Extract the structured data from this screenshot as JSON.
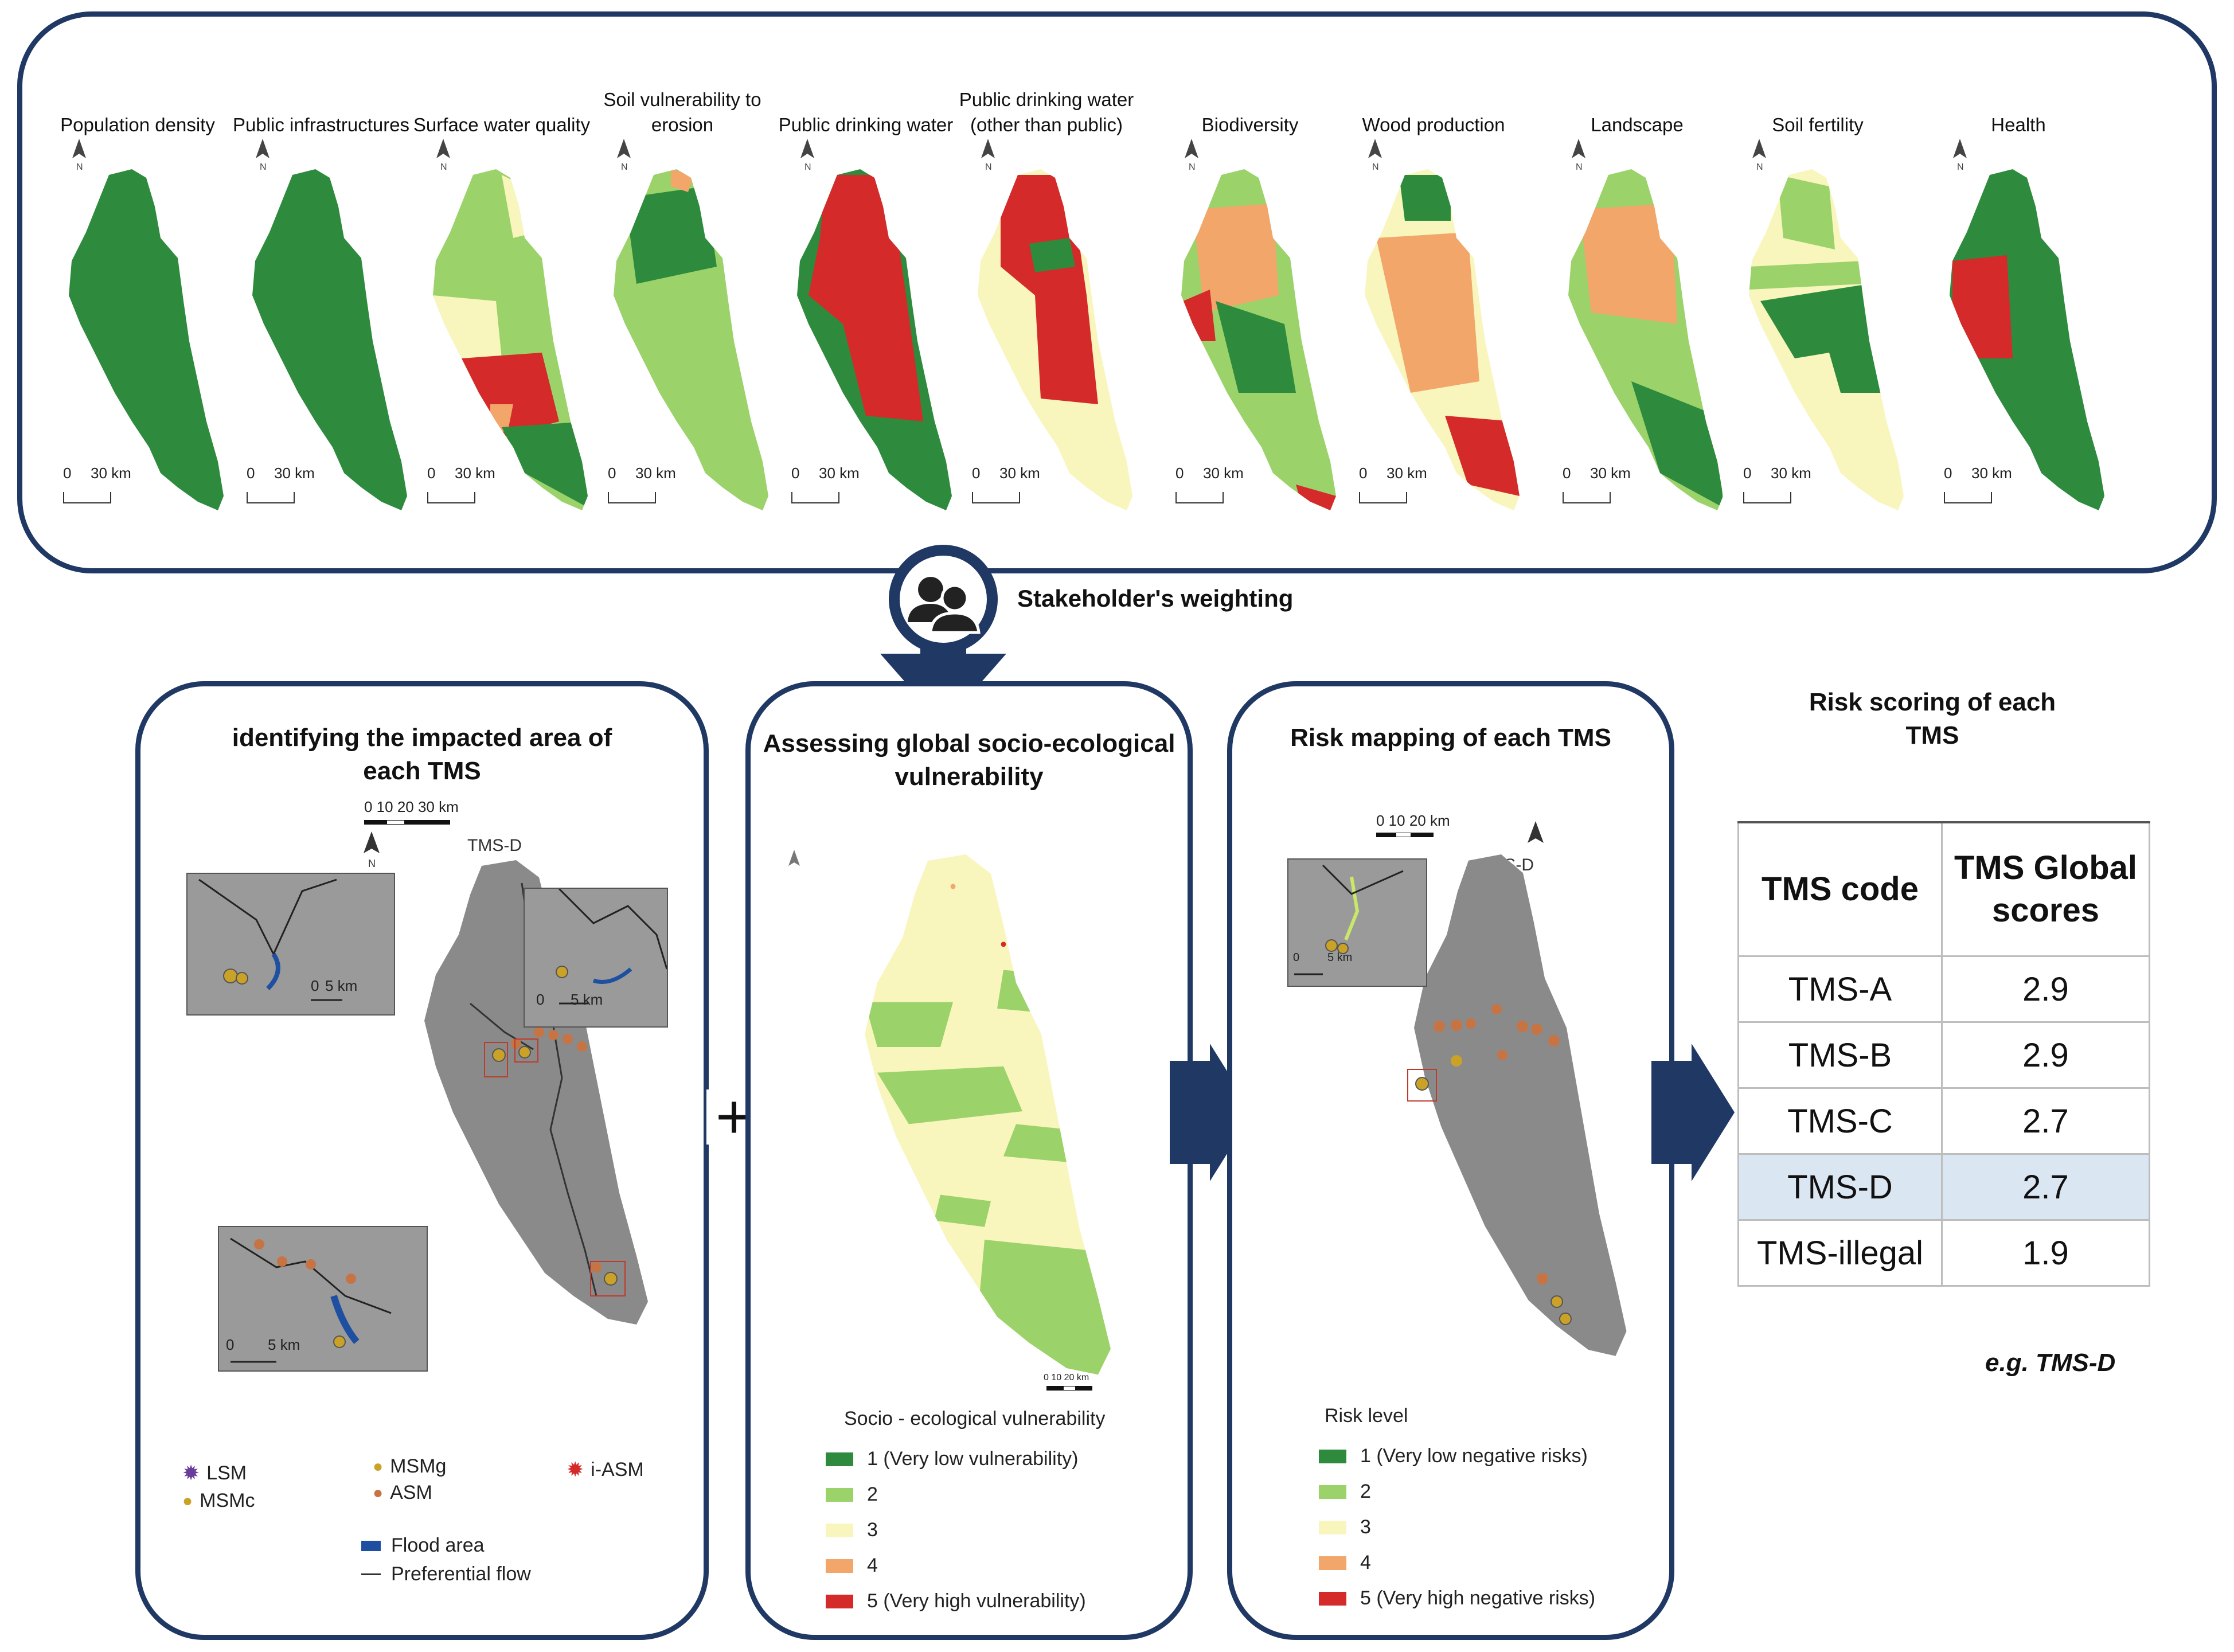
{
  "top_maps": [
    {
      "label": "Population density",
      "scale": "30 km"
    },
    {
      "label": "Public infrastructures",
      "scale": "30 km"
    },
    {
      "label": "Surface water quality",
      "scale": "30 km"
    },
    {
      "label": "Soil vulnerability to erosion",
      "scale": "30 km"
    },
    {
      "label": "Public drinking water",
      "scale": "30 km"
    },
    {
      "label": "Public drinking water (other than public)",
      "scale": "30 km"
    },
    {
      "label": "Biodiversity",
      "scale": "30 km"
    },
    {
      "label": "Wood production",
      "scale": "30 km"
    },
    {
      "label": "Landscape",
      "scale": "30 km"
    },
    {
      "label": "Soil fertility",
      "scale": "30 km"
    },
    {
      "label": "Health",
      "scale": "30 km"
    }
  ],
  "scale_zero": "0",
  "north": "N",
  "stakeholder_label": "Stakeholder's weighting",
  "panel1": {
    "title": "identifying the impacted area of each TMS",
    "scale": "0  10  20  30 km",
    "tms_label": "TMS-D",
    "inset_scale": "5 km",
    "inset_zero": "0",
    "legend": {
      "lsm": "LSM",
      "msmc": "MSMc",
      "msmg": "MSMg",
      "asm": "ASM",
      "iasm": "i-ASM",
      "flood": "Flood area",
      "flow": "Preferential flow"
    }
  },
  "plus_sign": "+",
  "panel2": {
    "title": "Assessing global socio-ecological vulnerability",
    "map_scale": "0  10  20 km",
    "legend_title": "Socio - ecological vulnerability",
    "legend": [
      "1 (Very low vulnerability)",
      "2",
      "3",
      "4",
      "5 (Very high vulnerability)"
    ]
  },
  "panel3": {
    "title": "Risk mapping of each TMS",
    "scale": "0  10  20 km",
    "tms_label": "TMS-D",
    "inset_scale": "5 km",
    "inset_zero": "0",
    "legend_title": "Risk level",
    "legend": [
      "1 (Very low negative risks)",
      "2",
      "3",
      "4",
      "5 (Very high negative risks)"
    ]
  },
  "scoring": {
    "title": "Risk scoring of each TMS",
    "headers": [
      "TMS code",
      "TMS Global scores"
    ],
    "rows": [
      {
        "code": "TMS-A",
        "score": "2.9"
      },
      {
        "code": "TMS-B",
        "score": "2.9"
      },
      {
        "code": "TMS-C",
        "score": "2.7"
      },
      {
        "code": "TMS-D",
        "score": "2.7"
      },
      {
        "code": "TMS-illegal",
        "score": "1.9"
      }
    ],
    "highlighted": "TMS-D",
    "example": "e.g. TMS-D"
  },
  "colors": {
    "frame": "#1f3864",
    "class1": "#2e8b3e",
    "class2": "#9bd26a",
    "class3": "#f8f5bd",
    "class4": "#f2a66a",
    "class5": "#d42a2a",
    "hillshade": "#8a8a8a",
    "highlight_row": "#dae6f2"
  }
}
